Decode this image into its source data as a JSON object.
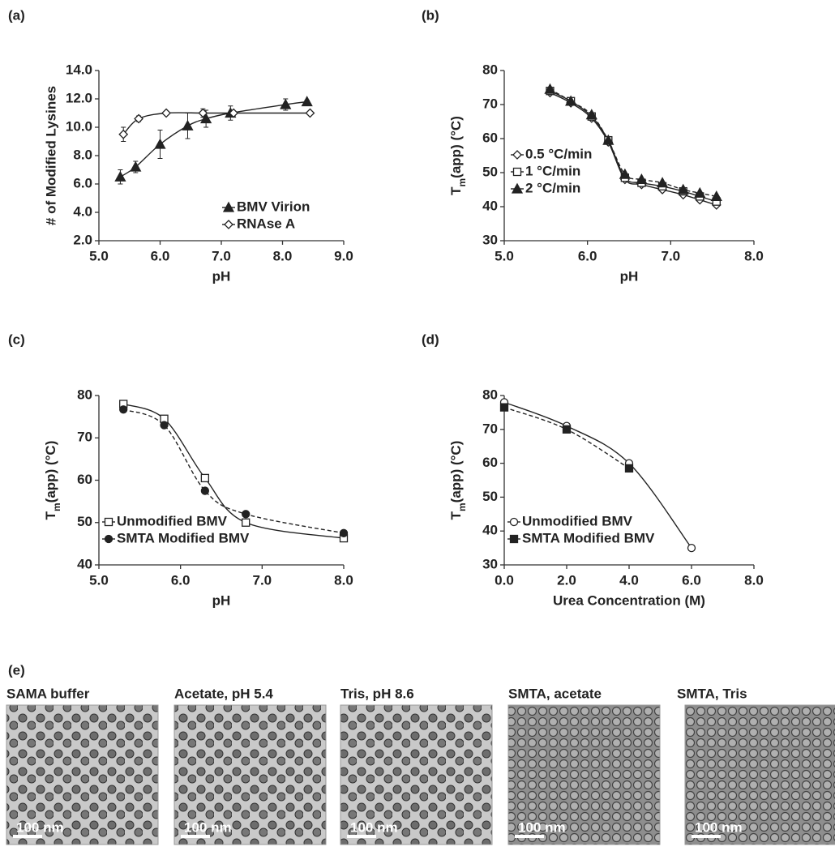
{
  "chart_data": [
    {
      "type": "line",
      "panel_label": "(a)",
      "x_label": "pH",
      "y_label": "# of Modified Lysines",
      "xlim": [
        5,
        9
      ],
      "xticks": [
        {
          "value": 5,
          "label": "5.0"
        },
        {
          "value": 6,
          "label": "6.0"
        },
        {
          "value": 7,
          "label": "7.0"
        },
        {
          "value": 8,
          "label": "8.0"
        },
        {
          "value": 9,
          "label": "9.0"
        }
      ],
      "ylim": [
        2,
        14
      ],
      "yticks": [
        {
          "value": 2,
          "label": "2.0"
        },
        {
          "value": 4,
          "label": "4.0"
        },
        {
          "value": 6,
          "label": "6.0"
        },
        {
          "value": 8,
          "label": "8.0"
        },
        {
          "value": 10,
          "label": "10.0"
        },
        {
          "value": 12,
          "label": "12.0"
        },
        {
          "value": 14,
          "label": "14.0"
        }
      ],
      "legend": "lower right",
      "series": [
        {
          "name": "BMV Virion",
          "color": "#222222",
          "marker": "triangle",
          "line_style": "solid",
          "x": [
            5.35,
            5.6,
            6.0,
            6.45,
            6.75,
            7.15,
            8.05,
            8.4
          ],
          "values": [
            6.5,
            7.2,
            8.8,
            10.1,
            10.6,
            11.0,
            11.6,
            11.8
          ],
          "errors": [
            0.5,
            0.4,
            1.0,
            0.9,
            0.6,
            0.5,
            0.4,
            0.1
          ]
        },
        {
          "name": "RNAse A",
          "color": "#222222",
          "marker": "diamond-open",
          "line_style": "solid",
          "x": [
            5.4,
            5.65,
            6.1,
            6.7,
            7.2,
            8.45
          ],
          "values": [
            9.5,
            10.6,
            11.0,
            11.0,
            11.0,
            11.0
          ],
          "errors": [
            0.5,
            0.2,
            0.1,
            0.3,
            0.1,
            0.1
          ]
        }
      ]
    },
    {
      "type": "line",
      "panel_label": "(b)",
      "x_label": "pH",
      "y_label": [
        "T",
        "m",
        "(app) (°C)"
      ],
      "xlim": [
        5,
        8
      ],
      "xticks": [
        {
          "value": 5,
          "label": "5.0"
        },
        {
          "value": 6,
          "label": "6.0"
        },
        {
          "value": 7,
          "label": "7.0"
        },
        {
          "value": 8,
          "label": "8.0"
        }
      ],
      "ylim": [
        30,
        80
      ],
      "yticks": [
        30,
        40,
        50,
        60,
        70,
        80
      ],
      "legend": "center left",
      "series": [
        {
          "name": "0.5 °C/min",
          "color": "#222222",
          "marker": "diamond-open",
          "line_style": "solid",
          "x": [
            5.55,
            5.8,
            6.05,
            6.25,
            6.45,
            6.65,
            6.9,
            7.15,
            7.35,
            7.55
          ],
          "values": [
            73.5,
            70.5,
            66,
            59,
            48,
            46.5,
            45,
            43.5,
            42,
            40.5
          ]
        },
        {
          "name": "1 °C/min",
          "color": "#222222",
          "marker": "square-open",
          "line_style": "solid",
          "x": [
            5.55,
            5.8,
            6.05,
            6.25,
            6.45,
            6.65,
            6.9,
            7.15,
            7.35,
            7.55
          ],
          "values": [
            74,
            71,
            66.5,
            59.5,
            48.5,
            47,
            46,
            44.5,
            43,
            41.5
          ]
        },
        {
          "name": "2 °C/min",
          "color": "#222222",
          "marker": "triangle",
          "line_style": "dashed",
          "x": [
            5.55,
            5.8,
            6.05,
            6.25,
            6.45,
            6.65,
            6.9,
            7.15,
            7.35,
            7.55
          ],
          "values": [
            74.5,
            71,
            67,
            59.5,
            49.5,
            48,
            47,
            45,
            44,
            43
          ]
        }
      ]
    },
    {
      "type": "line",
      "panel_label": "(c)",
      "x_label": "pH",
      "y_label": [
        "T",
        "m",
        "(app) (°C)"
      ],
      "xlim": [
        5,
        8
      ],
      "xticks": [
        {
          "value": 5,
          "label": "5.0"
        },
        {
          "value": 6,
          "label": "6.0"
        },
        {
          "value": 7,
          "label": "7.0"
        },
        {
          "value": 8,
          "label": "8.0"
        }
      ],
      "ylim": [
        40,
        80
      ],
      "yticks": [
        40,
        50,
        60,
        70,
        80
      ],
      "legend": "lower left",
      "series": [
        {
          "name": "Unmodified BMV",
          "color": "#222222",
          "marker": "square-open",
          "line_style": "solid",
          "x": [
            5.3,
            5.8,
            6.3,
            6.8,
            8.0
          ],
          "values": [
            78,
            74.5,
            60.5,
            50,
            46.3
          ]
        },
        {
          "name": "SMTA Modified BMV",
          "color": "#222222",
          "marker": "circle-filled",
          "line_style": "dashed",
          "x": [
            5.3,
            5.8,
            6.3,
            6.8,
            8.0
          ],
          "values": [
            76.7,
            73,
            57.5,
            52,
            47.5
          ]
        }
      ]
    },
    {
      "type": "line",
      "panel_label": "(d)",
      "x_label": "Urea Concentration (M)",
      "y_label": [
        "T",
        "m",
        "(app) (°C)"
      ],
      "xlim": [
        0,
        8
      ],
      "xticks": [
        {
          "value": 0,
          "label": "0.0"
        },
        {
          "value": 2,
          "label": "2.0"
        },
        {
          "value": 4,
          "label": "4.0"
        },
        {
          "value": 6,
          "label": "6.0"
        },
        {
          "value": 8,
          "label": "8.0"
        }
      ],
      "ylim": [
        30,
        80
      ],
      "yticks": [
        30,
        40,
        50,
        60,
        70,
        80
      ],
      "legend": "lower left",
      "series": [
        {
          "name": "Unmodified BMV",
          "color": "#222222",
          "marker": "circle-open",
          "line_style": "solid",
          "x": [
            0,
            2,
            4,
            6
          ],
          "values": [
            78,
            71,
            60,
            35
          ]
        },
        {
          "name": "SMTA Modified BMV",
          "color": "#222222",
          "marker": "square-filled",
          "line_style": "dashed",
          "x": [
            0,
            2,
            4
          ],
          "values": [
            76.5,
            70,
            58.5
          ]
        }
      ]
    }
  ],
  "images": {
    "panel_label": "(e)",
    "titles": [
      "SAMA buffer",
      "Acetate, pH 5.4",
      "Tris, pH 8.6",
      "SMTA, acetate",
      "SMTA, Tris"
    ],
    "scale_bar": "100 nm"
  }
}
